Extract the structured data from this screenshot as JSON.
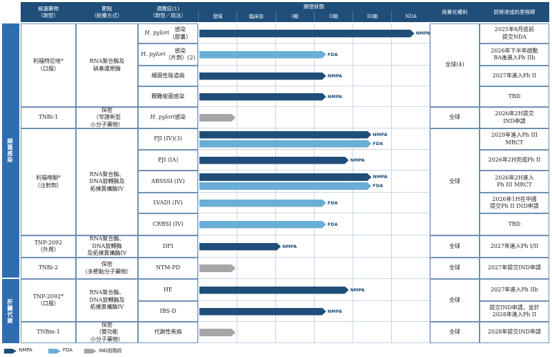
{
  "headers": {
    "candidate": "候選藥物\n（劑型）",
    "target": "靶點\n（給藥方式）",
    "indication": "適應症(1)\n（劑型／用法）",
    "status": "開發狀態",
    "rights": "商業化權利",
    "milestone": "即將達成的里程碑"
  },
  "stages": [
    "發現",
    "臨床前",
    "I期",
    "II期",
    "III期",
    "NDA"
  ],
  "sides": {
    "infection": "細菌感染",
    "metabolic": "肝臟代謝"
  },
  "candidates": {
    "c1": {
      "name": "利福特尼唑*\n（口服）",
      "target": "RNA聚合酶及\n硝基還原酶",
      "rights": "全球(4)"
    },
    "c2": {
      "name": "TNBi-1",
      "target": "保密\n（窄譜新型\n小分子藥物）",
      "rights": "全球"
    },
    "c3": {
      "name": "利福喹酮*\n（注射劑）",
      "target": "RNA聚合酶、\nDNA旋轉酶及\n拓撲異構酶IV",
      "rights": "全球"
    },
    "c4": {
      "name": "TNP-2092\n（外用）",
      "target": "RNA聚合酶、\nDNA旋轉酶\n及拓撲異構酶IV",
      "rights": "全球"
    },
    "c5": {
      "name": "TNBi-2",
      "target": "保密\n（多靶點分子藥物）",
      "rights": "全球"
    },
    "c6": {
      "name": "TNP-2092*\n（口服）",
      "target": "RNA聚合酶、\nDNA旋轉酶及\n拓撲異構酶IV",
      "rights": "全球"
    },
    "c7": {
      "name": "TNBm-1",
      "target": "保密\n（雙功能\n小分子藥物）",
      "rights": "全球"
    }
  },
  "rows": [
    {
      "ind_it": "H. pylori",
      "ind": "感染\n（膠囊）",
      "bar": "NMPA",
      "end_pct": 95,
      "label": "NMPA",
      "milestone": "2025年8月底前\n提交NDA"
    },
    {
      "ind_it": "H. pylori",
      "ind": "感染\n（片劑）(2)",
      "bar": "FDA",
      "end_pct": 56,
      "label": "FDA",
      "milestone": "2026年下半年啟動\nBA後進入Ph IIb"
    },
    {
      "ind_it": "",
      "ind": "細菌性陰道病",
      "bar": "NMPA",
      "end_pct": 56,
      "label": "NMPA",
      "milestone": "2027年進入Ph II"
    },
    {
      "ind_it": "",
      "ind": "艱難梭菌感染",
      "bar": "NMPA",
      "end_pct": 56,
      "label": "NMPA",
      "milestone": "TBD"
    },
    {
      "ind_it": "H. pylori",
      "ind": "感染",
      "bar": "IND",
      "end_pct": 16,
      "label": "",
      "milestone": "2026年2H提交\nIND申請"
    },
    {
      "ind_it": "",
      "ind": "PJI (IV)(3)",
      "bar": "NMPA",
      "end_pct": 76,
      "label": "NMPA",
      "bar2": "FDA",
      "end2_pct": 76,
      "label2": "FDA",
      "milestone": "2029年進入Ph III\nMRCT"
    },
    {
      "ind_it": "",
      "ind": "PJI (IA)",
      "bar": "NMPA",
      "end_pct": 66,
      "label": "NMPA",
      "milestone": "2026年2H完成Ph II"
    },
    {
      "ind_it": "",
      "ind": "ABSSSI (IV)",
      "bar": "NMPA",
      "end_pct": 76,
      "label": "NMPA",
      "bar2": "FDA",
      "end2_pct": 76,
      "label2": "FDA",
      "milestone": "2026年2H進入\nPh III MRCT"
    },
    {
      "ind_it": "",
      "ind": "LVADI (IV)",
      "bar": "FDA",
      "end_pct": 56,
      "label": "FDA",
      "milestone": "2026年1H在中國\n提交Ph II IND申請"
    },
    {
      "ind_it": "",
      "ind": "CRBSI (IV)",
      "bar": "FDA",
      "end_pct": 56,
      "label": "FDA",
      "milestone": "TBD"
    },
    {
      "ind_it": "",
      "ind": "DFI",
      "bar": "NMPA",
      "end_pct": 36,
      "label": "NMPA",
      "milestone": "2027年進入Ph I/II"
    },
    {
      "ind_it": "",
      "ind": "NTM-PD",
      "bar": "IND",
      "end_pct": 16,
      "label": "",
      "milestone": "2027年提交IND申請"
    },
    {
      "ind_it": "",
      "ind": "HE",
      "bar": "NMPA",
      "end_pct": 66,
      "label": "NMPA",
      "milestone": "2027年進入Ph IIb"
    },
    {
      "ind_it": "",
      "ind": "IBS-D",
      "bar": "NMPA",
      "end_pct": 56,
      "label": "NMPA",
      "milestone": "提交IND申請，並於\n2028年進入Ph II"
    },
    {
      "ind_it": "",
      "ind": "代謝性疾病",
      "bar": "IND",
      "end_pct": 16,
      "label": "",
      "milestone": "2028年提交IND申請"
    }
  ],
  "legend": [
    {
      "key": "NMPA",
      "label": "NMPA"
    },
    {
      "key": "FDA",
      "label": "FDA"
    },
    {
      "key": "IND",
      "label": "IND前階段"
    }
  ]
}
